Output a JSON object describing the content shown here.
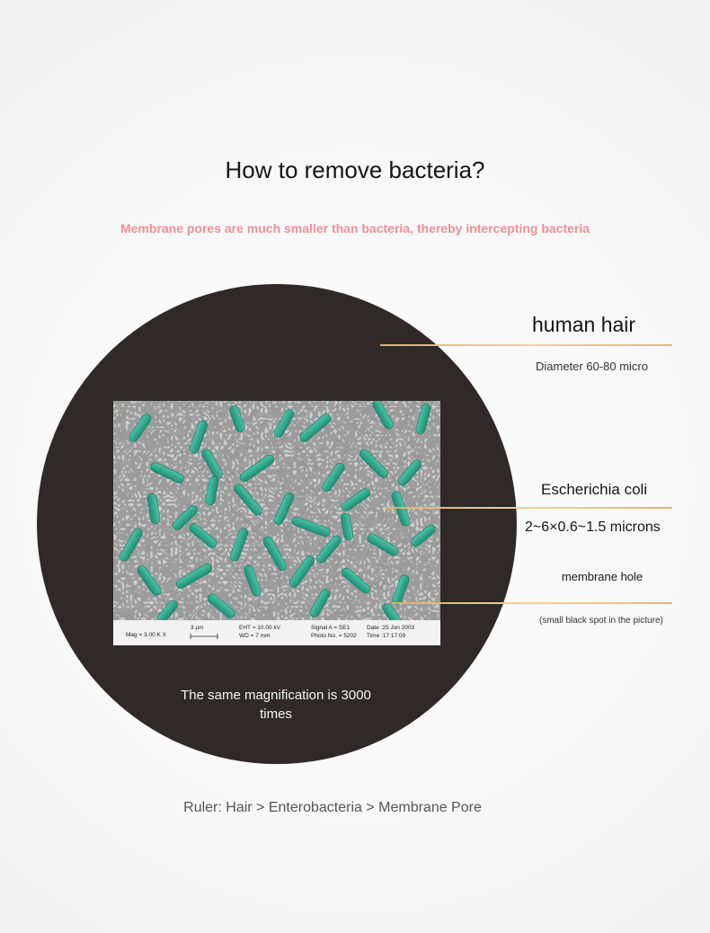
{
  "title": "How to remove bacteria?",
  "subtitle": "Membrane pores are much smaller than bacteria, thereby intercepting bacteria",
  "circle": {
    "color": "#2f2a28",
    "caption": "The same magnification is 3000 times"
  },
  "labels": {
    "hair": {
      "title": "human hair",
      "description": "Diameter 60-80 micro"
    },
    "ecoli": {
      "title": "Escherichia coli",
      "description": "2~6×0.6~1.5 microns"
    },
    "hole": {
      "title": "membrane hole",
      "note": "(small black spot in the picture)"
    }
  },
  "ruler": "Ruler: Hair > Enterobacteria > Membrane Pore",
  "micrograph": {
    "mag": "Mag =   3.00 K X",
    "scale": "3 µm",
    "eht": "EHT = 10.00 kV",
    "wd": "WD =    7 mm",
    "signal": "Signal A = SE1",
    "photo": "Photo No. = 5202",
    "date": "Date :25 Jun 2003",
    "time": "Time :17:17:09"
  },
  "colors": {
    "accent_line": "#e6c07e",
    "bacteria": "#2aa184",
    "subtitle": "#ef8f94"
  }
}
